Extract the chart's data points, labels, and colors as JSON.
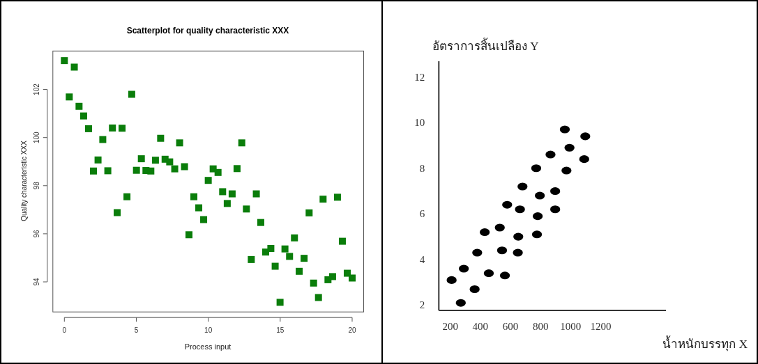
{
  "chart_data": [
    {
      "type": "scatter",
      "title": "Scatterplot for quality characteristic XXX",
      "xlabel": "Process input",
      "ylabel": "Quality characteristic XXX",
      "marker": "square",
      "color": "#0a7d0a",
      "grid": false,
      "x": [
        0,
        0.34,
        0.69,
        1.02,
        1.34,
        1.68,
        2.02,
        2.34,
        2.67,
        3.02,
        3.34,
        3.67,
        4.01,
        4.35,
        4.68,
        5.01,
        5.35,
        5.67,
        6.01,
        6.33,
        6.69,
        7.0,
        7.32,
        7.67,
        8.01,
        8.35,
        8.66,
        9.0,
        9.34,
        9.68,
        10.0,
        10.34,
        10.68,
        11.0,
        11.32,
        11.66,
        12.0,
        12.33,
        12.65,
        12.99,
        13.34,
        13.65,
        13.99,
        14.35,
        14.65,
        14.99,
        15.33,
        15.65,
        15.99,
        16.32,
        16.66,
        17.01,
        17.32,
        17.66,
        17.98,
        18.32,
        18.64,
        18.98,
        19.32,
        19.66,
        20.0
      ],
      "values": [
        103.2,
        101.69,
        102.93,
        101.3,
        100.9,
        100.37,
        98.61,
        99.07,
        99.92,
        98.62,
        100.4,
        96.88,
        100.39,
        97.54,
        101.8,
        98.64,
        99.12,
        98.63,
        98.61,
        99.06,
        99.97,
        99.1,
        98.99,
        98.7,
        99.78,
        98.79,
        95.96,
        97.54,
        97.08,
        96.59,
        98.22,
        98.7,
        98.55,
        97.75,
        97.26,
        97.66,
        98.71,
        99.78,
        97.03,
        94.93,
        97.66,
        96.47,
        95.24,
        95.39,
        94.65,
        93.15,
        95.37,
        95.06,
        95.83,
        94.44,
        94.98,
        96.87,
        93.95,
        93.35,
        97.44,
        94.09,
        94.22,
        97.52,
        95.69,
        94.36,
        94.16
      ],
      "xlim": [
        -0.8,
        20.8
      ],
      "ylim": [
        92.75,
        103.6
      ],
      "xticks": [
        0,
        5,
        10,
        15,
        20
      ],
      "yticks": [
        94,
        96,
        98,
        100,
        102
      ]
    },
    {
      "type": "scatter",
      "xlabel": "น้ำหนักบรรทุก X",
      "ylabel": "อัตราการสิ้นเปลือง Y",
      "marker": "circle",
      "color": "#000000",
      "grid": false,
      "x": [
        209,
        270,
        290,
        362,
        379,
        429,
        456,
        529,
        544,
        563,
        578,
        649,
        652,
        663,
        680,
        771,
        776,
        781,
        795,
        866,
        897,
        897,
        961,
        972,
        992,
        1090,
        1097
      ],
      "values": [
        3.1,
        2.1,
        3.6,
        2.7,
        4.3,
        5.2,
        3.4,
        5.4,
        4.4,
        3.3,
        6.4,
        4.3,
        5.0,
        6.2,
        7.2,
        8.0,
        5.1,
        5.9,
        6.8,
        8.6,
        6.2,
        7.0,
        9.7,
        7.9,
        8.9,
        8.4,
        9.4
      ],
      "xlim": [
        124,
        1633
      ],
      "ylim": [
        1.77,
        12.69
      ],
      "xticks": [
        200,
        400,
        600,
        800,
        1000,
        1200
      ],
      "yticks": [
        2,
        4,
        6,
        8,
        10,
        12
      ]
    }
  ]
}
